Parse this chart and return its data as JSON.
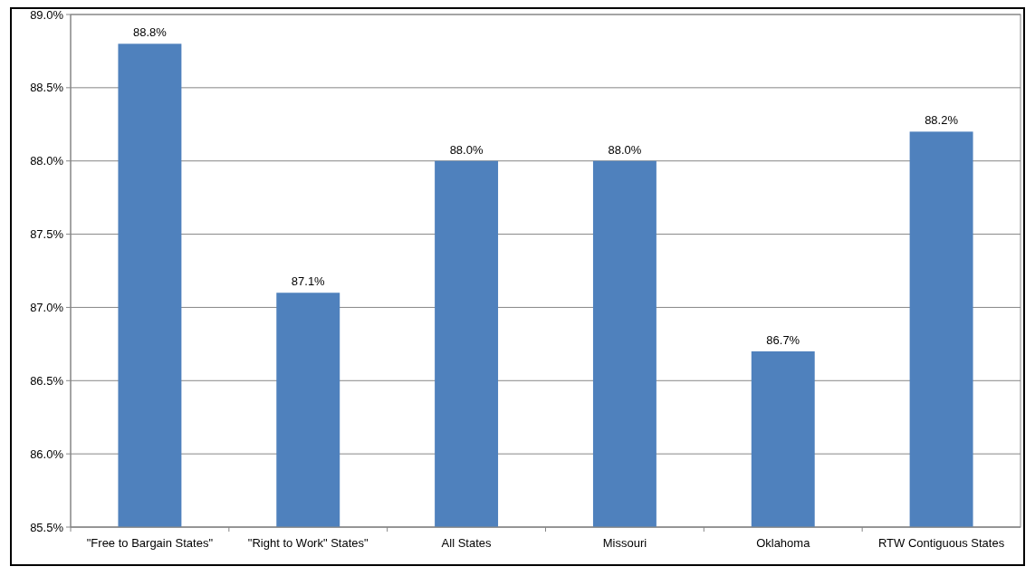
{
  "chart_data": {
    "type": "bar",
    "categories": [
      "\"Free to Bargain States\"",
      "\"Right to Work\" States\"",
      "All States",
      "Missouri",
      "Oklahoma",
      "RTW Contiguous States"
    ],
    "values": [
      88.8,
      87.1,
      88.0,
      88.0,
      86.7,
      88.2
    ],
    "color": "#4f81bd",
    "value_labels": [
      "88.8%",
      "87.1%",
      "88.0%",
      "88.0%",
      "86.7%",
      "88.2%"
    ],
    "ylim": [
      85.5,
      89.0
    ],
    "yticks": [
      {
        "value": 85.5,
        "label": "85.5%"
      },
      {
        "value": 86.0,
        "label": "86.0%"
      },
      {
        "value": 86.5,
        "label": "86.5%"
      },
      {
        "value": 87.0,
        "label": "87.0%"
      },
      {
        "value": 87.5,
        "label": "87.5%"
      },
      {
        "value": 88.0,
        "label": "88.0%"
      },
      {
        "value": 88.5,
        "label": "88.5%"
      },
      {
        "value": 89.0,
        "label": "89.0%"
      }
    ],
    "grid": "y"
  }
}
